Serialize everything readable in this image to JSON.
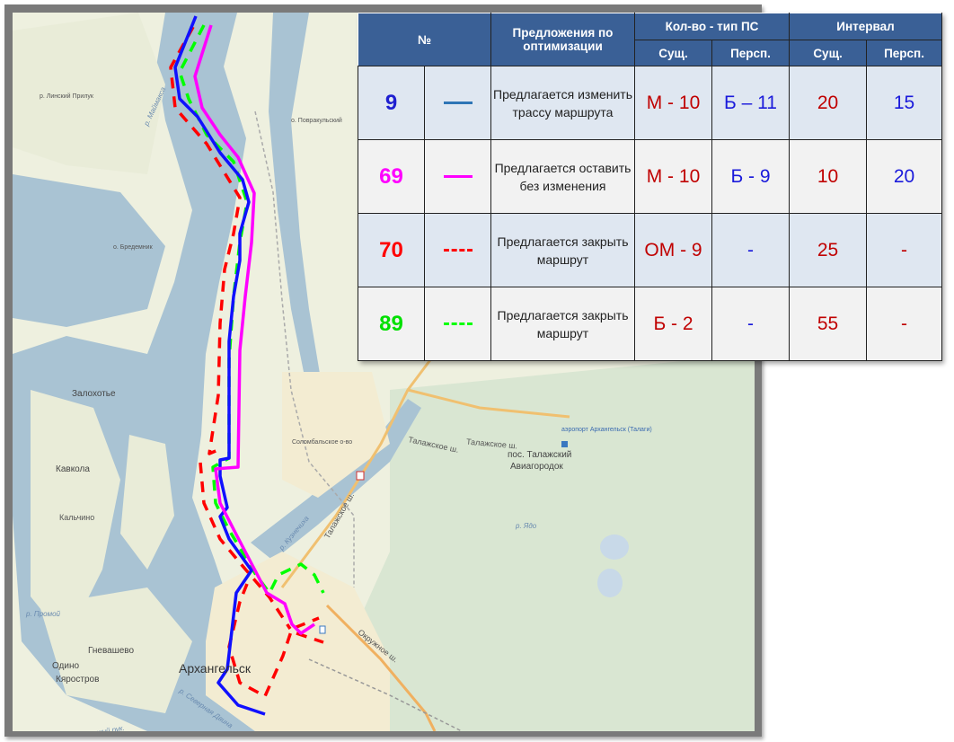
{
  "table": {
    "header": {
      "number": "№",
      "proposal": "Предложения по оптимизации",
      "vehicles": "Кол-во - тип ПС",
      "interval": "Интервал",
      "current": "Сущ.",
      "prospective": "Персп.",
      "current2": "Сущ.",
      "prospective2": "Персп."
    },
    "rows": [
      {
        "route": "9",
        "color": "#1f1fd0",
        "line_color": "#2e75b6",
        "line_style": "solid",
        "proposal": "Предлагается изменить трассу маршрута",
        "vehicles_current": "М - 10",
        "vehicles_prospective": "Б – 11",
        "interval_current": "20",
        "interval_prospective": "15"
      },
      {
        "route": "69",
        "color": "#ff00ff",
        "line_color": "#ff00ff",
        "line_style": "solid",
        "proposal": "Предлагается оставить без изменения",
        "vehicles_current": "М - 10",
        "vehicles_prospective": "Б - 9",
        "interval_current": "10",
        "interval_prospective": "20"
      },
      {
        "route": "70",
        "color": "#ff0000",
        "line_color": "#ff0000",
        "line_style": "dashed",
        "proposal": "Предлагается закрыть маршрут",
        "vehicles_current": "ОМ - 9",
        "vehicles_prospective": "-",
        "interval_current": "25",
        "interval_prospective": "-"
      },
      {
        "route": "89",
        "color": "#00e000",
        "line_color": "#00ff00",
        "line_style": "dashed",
        "proposal": "Предлагается закрыть маршрут",
        "vehicles_current": "Б - 2",
        "vehicles_prospective": "-",
        "interval_current": "55",
        "interval_prospective": "-"
      }
    ]
  },
  "map": {
    "labels": {
      "city": "Архангельск",
      "zalohotye": "Залохотье",
      "kavkola": "Кавкола",
      "kalchino": "Кальчино",
      "gnevashevo": "Гневашево",
      "odino": "Одино",
      "kyarostrov": "Кяростров",
      "talazh_settlement": "пос. Талажский",
      "aviagorodok": "Авиагородок",
      "airport": "аэропорт Архангельск (Талаги)",
      "talazh_hwy1": "Талажское ш.",
      "talazh_hwy2": "Талажское ш.",
      "talazh_hwy3": "Талажское ш.",
      "okruzhnoe": "Окружное ш.",
      "solombala": "Соломбальское о-во",
      "povrakulsky": "о. Повракульский",
      "bredemnik": "о. Бредемник",
      "linsky": "р. Линский Прилук",
      "sev_dvina": "р. Северная Двина",
      "nikolsky": "Никольский рук.",
      "kuznechikha": "р. Кузнечиха",
      "yada": "р. Ядо",
      "promoy": "р. Промой",
      "maymaksa": "р. Маймакса"
    },
    "colors": {
      "land": "#eef0df",
      "water": "#a9c3d3",
      "forest": "#d7e4cf",
      "road": "#f0b060"
    }
  }
}
